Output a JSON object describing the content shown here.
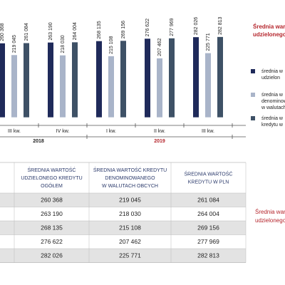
{
  "chart_data": {
    "type": "bar",
    "title": [
      "Średnia wart",
      "udzielonego"
    ],
    "title_color": "#b5262d",
    "categories": [
      "III kw.",
      "IV kw.",
      "I kw.",
      "II kw.",
      "III kw."
    ],
    "groups": [
      {
        "label": "2018",
        "size": 2
      },
      {
        "label": "2019",
        "size": 3,
        "color": "#b5262d"
      }
    ],
    "series": [
      {
        "name": [
          "średnia w",
          "udzielon"
        ],
        "color": "#1f2a5a",
        "values": [
          260368,
          263190,
          268135,
          276622,
          282026
        ],
        "value_labels": [
          "260 368",
          "263 190",
          "268 135",
          "276 622",
          "282 026"
        ]
      },
      {
        "name": [
          "średnia w",
          "denominow",
          "w walutach"
        ],
        "color": "#a9b4c9",
        "values": [
          219045,
          218030,
          215108,
          207462,
          225771
        ],
        "value_labels": [
          "219 045",
          "218 030",
          "215 108",
          "207 462",
          "225 771"
        ]
      },
      {
        "name": [
          "średnia w",
          "kredytu w"
        ],
        "color": "#3e5166",
        "values": [
          261084,
          264004,
          269156,
          277969,
          282813
        ],
        "value_labels": [
          "261 084",
          "264 004",
          "269 156",
          "277 969",
          "282 813"
        ]
      }
    ],
    "ylim": [
      -26000,
      300000
    ]
  },
  "table": {
    "header": [
      [
        "ŚREDNIA WARTOŚĆ",
        "UDZIELONEGO KREDYTU",
        "OGÓŁEM"
      ],
      [
        "ŚREDNIA WARTOŚĆ KREDYTU",
        "DENOMINOWANEGO",
        "W WALUTACH OBCYCH"
      ],
      [
        "ŚREDNIA WARTOŚĆ",
        "KREDYTU W PLN"
      ]
    ],
    "rows": [
      [
        "260 368",
        "219 045",
        "261 084"
      ],
      [
        "263 190",
        "218 030",
        "264 004"
      ],
      [
        "268 135",
        "215 108",
        "269 156"
      ],
      [
        "276 622",
        "207 462",
        "277 969"
      ],
      [
        "282 026",
        "225 771",
        "282 813"
      ]
    ],
    "note": [
      "Średnia wart",
      "udzielonego"
    ]
  }
}
